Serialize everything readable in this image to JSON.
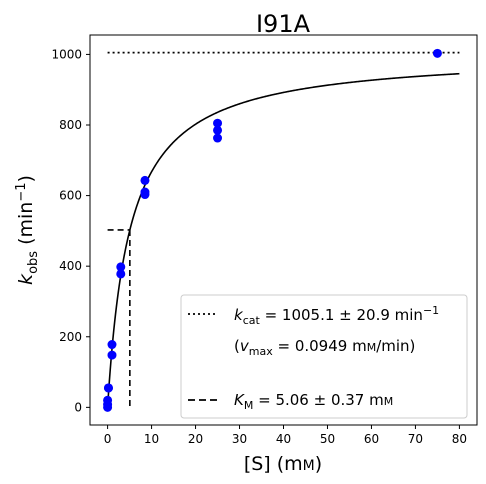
{
  "chart_data": {
    "type": "scatter",
    "title": "I91A",
    "xlabel": {
      "main": "[S] (m",
      "smallcaps": "M",
      "close": ")"
    },
    "ylabel": {
      "k": "k",
      "sub": "obs",
      "unit_open": " (min",
      "sup": "−1",
      "unit_close": ")"
    },
    "xlim": [
      -4,
      84
    ],
    "ylim": [
      -50,
      1055
    ],
    "x_ticks": [
      0,
      10,
      20,
      30,
      40,
      50,
      60,
      70,
      80
    ],
    "y_ticks": [
      0,
      200,
      400,
      600,
      800,
      1000
    ],
    "grid": false,
    "points": {
      "color": "#0000ff",
      "x": [
        0,
        0,
        0,
        0.2,
        0.2,
        1,
        1,
        3,
        3,
        8.5,
        8.5,
        8.5,
        25,
        25,
        25,
        75
      ],
      "y": [
        0,
        8,
        20,
        55,
        55,
        148,
        178,
        378,
        398,
        603,
        610,
        643,
        763,
        785,
        805,
        1003
      ]
    },
    "fit": {
      "type": "michaelis-menten",
      "vmax": 1005.1,
      "km": 5.06,
      "x_range": [
        0,
        80
      ],
      "color": "#000000"
    },
    "kcat_line": {
      "y": 1005.1,
      "x_range": [
        0,
        80
      ],
      "style": "dotted"
    },
    "km_lines": {
      "x": 5.06,
      "y_half": 502.55,
      "style": "dashed"
    },
    "legend": {
      "placement": "lower-right",
      "kcat": {
        "k": "k",
        "sub": "cat",
        "value": " = 1005.1 ± 20.9 min",
        "sup": "−1"
      },
      "vmax": {
        "open": "(",
        "v": "v",
        "sub": "max",
        "value": " = 0.0949 m",
        "smallcaps": "M",
        "unit_rest": "/min)"
      },
      "km": {
        "k": "K",
        "sub": "M",
        "value": " = 5.06 ± 0.37 m",
        "smallcaps": "M"
      }
    }
  }
}
